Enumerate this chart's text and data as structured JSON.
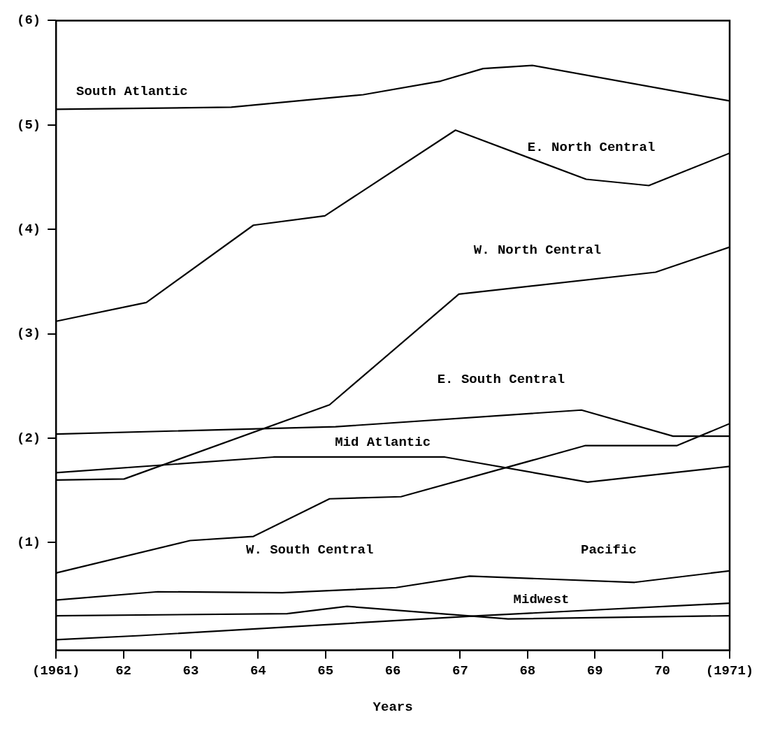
{
  "chart_data": {
    "type": "line",
    "xlabel": "Years",
    "xlim": [
      1961,
      1971
    ],
    "ylim": [
      -0.03,
      6
    ],
    "xticks": [
      {
        "value": 1961,
        "label": "(1961)"
      },
      {
        "value": 1962,
        "label": "62"
      },
      {
        "value": 1963,
        "label": "63"
      },
      {
        "value": 1964,
        "label": "64"
      },
      {
        "value": 1965,
        "label": "65"
      },
      {
        "value": 1966,
        "label": "66"
      },
      {
        "value": 1967,
        "label": "67"
      },
      {
        "value": 1968,
        "label": "68"
      },
      {
        "value": 1969,
        "label": "69"
      },
      {
        "value": 1970,
        "label": "70"
      },
      {
        "value": 1971,
        "label": "(1971)"
      }
    ],
    "yticks": [
      {
        "value": 1,
        "label": "(1)"
      },
      {
        "value": 2,
        "label": "(2)"
      },
      {
        "value": 3,
        "label": "(3)"
      },
      {
        "value": 4,
        "label": "(4)"
      },
      {
        "value": 5,
        "label": "(5)"
      },
      {
        "value": 6,
        "label": "(6)"
      }
    ],
    "grid": false,
    "legend": false,
    "marker": "none",
    "line_style": "solid",
    "series": [
      {
        "name": "South Atlantic",
        "color": "#000000",
        "x": [
          1961,
          1963.6,
          1965.56,
          1966.71,
          1967.34,
          1968.07,
          1971
        ],
        "values": [
          5.15,
          5.17,
          5.29,
          5.42,
          5.54,
          5.57,
          5.23
        ]
      },
      {
        "name": "E. North Central",
        "color": "#000000",
        "x": [
          1961,
          1962.34,
          1963.93,
          1964.99,
          1966.93,
          1968.87,
          1969.8,
          1971
        ],
        "values": [
          3.12,
          3.3,
          4.04,
          4.13,
          4.95,
          4.48,
          4.42,
          4.73
        ]
      },
      {
        "name": "W. North Central",
        "color": "#000000",
        "x": [
          1961,
          1962.01,
          1965.06,
          1966.98,
          1969.9,
          1971
        ],
        "values": [
          1.6,
          1.61,
          2.32,
          3.38,
          3.59,
          3.83
        ]
      },
      {
        "name": "E. South Central",
        "color": "#000000",
        "x": [
          1961,
          1965.15,
          1968.8,
          1970.16,
          1971
        ],
        "values": [
          2.04,
          2.11,
          2.27,
          2.02,
          2.02
        ]
      },
      {
        "name": "Mid Atlantic",
        "color": "#000000",
        "x": [
          1961,
          1964.23,
          1966.77,
          1968.89,
          1971
        ],
        "values": [
          1.67,
          1.82,
          1.82,
          1.58,
          1.73
        ]
      },
      {
        "name": "W. South Central",
        "color": "#000000",
        "x": [
          1961,
          1962.99,
          1963.93,
          1965.06,
          1966.12,
          1968.86,
          1970.22,
          1971
        ],
        "values": [
          0.71,
          1.02,
          1.06,
          1.42,
          1.44,
          1.93,
          1.93,
          2.14
        ]
      },
      {
        "name": "Pacific",
        "color": "#000000",
        "x": [
          1961,
          1962.51,
          1964.36,
          1966.05,
          1967.14,
          1969.59,
          1971
        ],
        "values": [
          0.45,
          0.53,
          0.52,
          0.57,
          0.68,
          0.62,
          0.73
        ]
      },
      {
        "name": "Midwest",
        "color": "#000000",
        "x": [
          1961,
          1964.43,
          1965.32,
          1967.71,
          1971
        ],
        "values": [
          0.3,
          0.32,
          0.39,
          0.27,
          0.3
        ]
      },
      {
        "color": "#000000",
        "x": [
          1961,
          1962.25,
          1967.27,
          1971
        ],
        "values": [
          0.07,
          0.11,
          0.3,
          0.42
        ]
      }
    ]
  }
}
